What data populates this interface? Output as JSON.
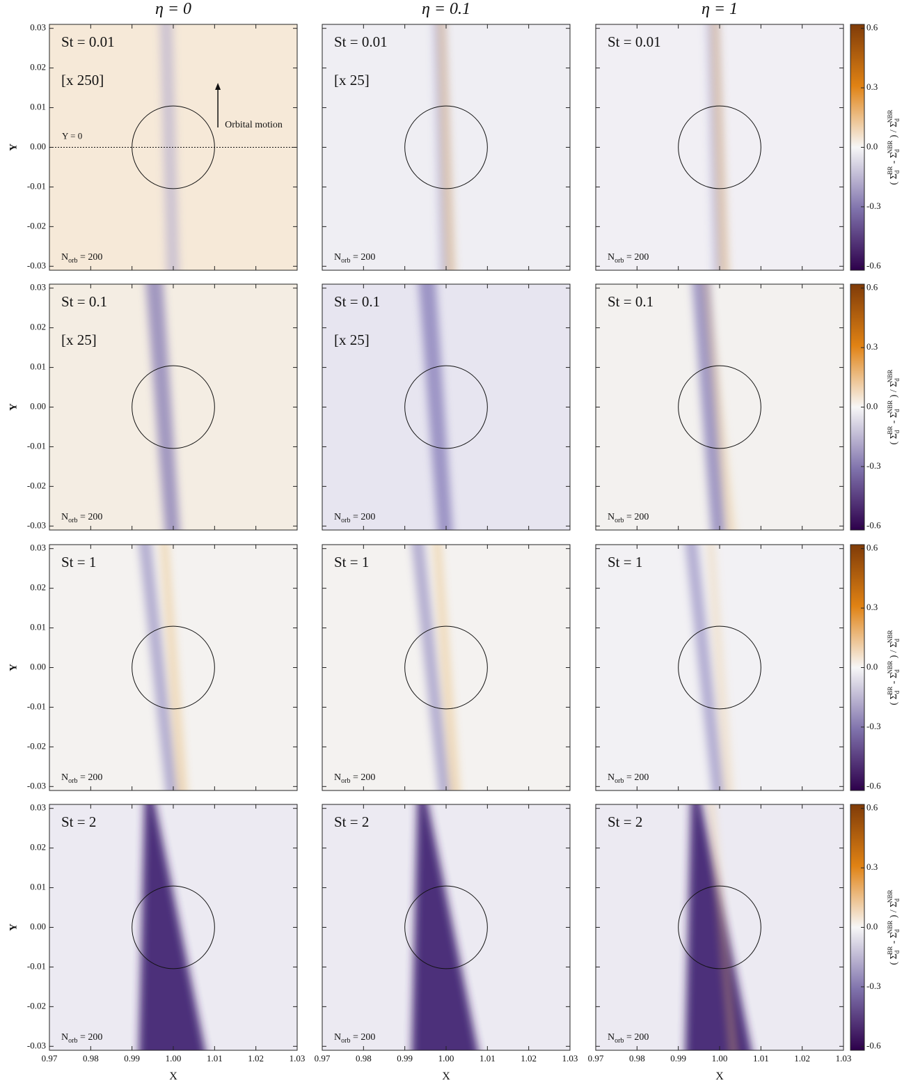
{
  "figure": {
    "column_titles": [
      "η = 0",
      "η = 0.1",
      "η = 1"
    ],
    "xlabel": "X",
    "ylabel": "Y",
    "xlim": [
      0.97,
      1.03
    ],
    "xticks": [
      0.97,
      0.98,
      0.99,
      {
        "value": 1,
        "label": "1.00"
      },
      1.01,
      1.02,
      1.03
    ],
    "ylim": [
      -0.031,
      0.031
    ],
    "yticks": [
      -0.03,
      -0.02,
      -0.01,
      {
        "value": 0,
        "label": "0.00"
      },
      0.01,
      0.02,
      0.03
    ],
    "colorbar": {
      "lim": [
        -0.62,
        0.62
      ],
      "ticks": [
        -0.6,
        -0.3,
        {
          "value": 0,
          "label": "0.0"
        },
        0.3,
        0.6
      ],
      "colors": [
        "#2d004b",
        "#8073ac",
        "#f7f7f7",
        "#e08214",
        "#7f3b08"
      ],
      "label": [
        {
          "text": "( Σ",
          "style": "n"
        },
        {
          "text": "d",
          "style": "sub"
        },
        {
          "text": "BR",
          "style": "sup"
        },
        {
          "text": " - Σ",
          "style": "n"
        },
        {
          "text": "d",
          "style": "sub"
        },
        {
          "text": "NBR",
          "style": "sup"
        },
        {
          "text": " ) / Σ",
          "style": "n"
        },
        {
          "text": "d",
          "style": "sub"
        },
        {
          "text": "NBR",
          "style": "sup"
        }
      ]
    },
    "orbits": {
      "symbol": "N",
      "sub": "orb",
      "text": " = 200"
    },
    "annotations": {
      "y0": "Y = 0",
      "motion": "Orbital motion"
    },
    "rows": [
      {
        "panels": [
          {
            "label": "St = 0.01",
            "factor": "[x 250]"
          },
          {
            "label": "St = 0.01",
            "factor": "[x 25]"
          },
          {
            "label": "St = 0.01"
          }
        ]
      },
      {
        "panels": [
          {
            "label": "St = 0.1",
            "factor": "[x 25]"
          },
          {
            "label": "St = 0.1",
            "factor": "[x 25]"
          },
          {
            "label": "St = 0.1"
          }
        ]
      },
      {
        "panels": [
          {
            "label": "St = 1"
          },
          {
            "label": "St = 1"
          },
          {
            "label": "St = 1"
          }
        ]
      },
      {
        "panels": [
          {
            "label": "St = 2"
          },
          {
            "label": "St = 2"
          },
          {
            "label": "St = 2"
          }
        ]
      }
    ]
  }
}
